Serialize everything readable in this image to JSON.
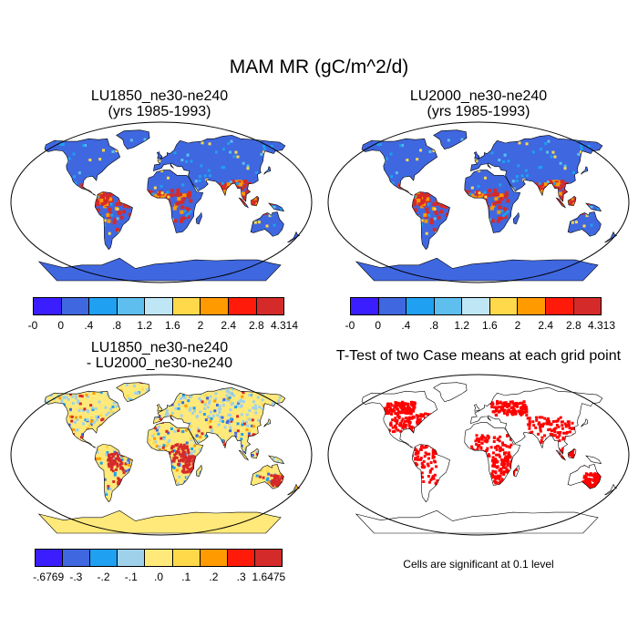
{
  "title": "MAM MR (gC/m^2/d)",
  "panels": [
    {
      "title_line1": "LU1850_ne30-ne240",
      "title_line2": "(yrs 1985-1993)"
    },
    {
      "title_line1": "LU2000_ne30-ne240",
      "title_line2": "(yrs 1985-1993)"
    },
    {
      "title_line1": "LU1850_ne30-ne240",
      "title_line2": "- LU2000_ne30-ne240"
    },
    {
      "title_line1": "T-Test of two Case means at each grid point"
    }
  ],
  "colorbars": [
    {
      "colors": [
        "#3a1eff",
        "#3f67e0",
        "#1fa0f0",
        "#5ebfee",
        "#bfe6f5",
        "#ffd94a",
        "#ff9a00",
        "#ff1a0a",
        "#d52a2a"
      ],
      "labels": [
        "-0",
        "0",
        ".4",
        ".8",
        "1.2",
        "1.6",
        "2",
        "2.4",
        "2.8",
        "4.314"
      ]
    },
    {
      "colors": [
        "#3a1eff",
        "#3f67e0",
        "#1fa0f0",
        "#5ebfee",
        "#bfe6f5",
        "#ffd94a",
        "#ff9a00",
        "#ff1a0a",
        "#d52a2a"
      ],
      "labels": [
        "-0",
        "0",
        ".4",
        ".8",
        "1.2",
        "1.6",
        "2",
        "2.4",
        "2.8",
        "4.313"
      ]
    },
    {
      "colors": [
        "#3a1eff",
        "#3f67e0",
        "#1fa0f0",
        "#9fd1ea",
        "#ffe97a",
        "#ffd94a",
        "#ff9a00",
        "#ff1a0a",
        "#d52a2a"
      ],
      "labels": [
        "-.6769",
        "-.3",
        "-.2",
        "-.1",
        ".0",
        ".1",
        ".2",
        ".3",
        "1.6475"
      ]
    }
  ],
  "significance_note": "Cells are significant at 0.1 level",
  "colors": {
    "base_blue": "#3f67e0",
    "tropics_red": "#d52a2a",
    "diff_yellow": "#ffe97a",
    "diff_lightblue": "#9fd1ea",
    "sig_red": "#ff0000"
  }
}
